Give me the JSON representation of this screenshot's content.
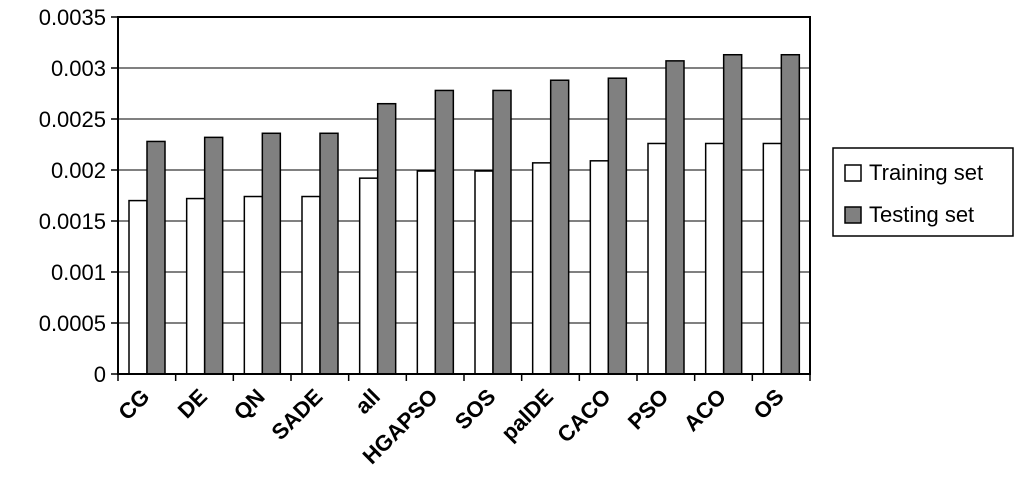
{
  "chart_data": {
    "type": "bar",
    "categories": [
      "CG",
      "DE",
      "QN",
      "SADE",
      "all",
      "HGAPSO",
      "SOS",
      "palDE",
      "CACO",
      "PSO",
      "ACO",
      "OS"
    ],
    "series": [
      {
        "name": "Training set",
        "color": "#ffffff",
        "values": [
          0.0017,
          0.00172,
          0.00174,
          0.00174,
          0.00192,
          0.00199,
          0.00199,
          0.00207,
          0.00209,
          0.00226,
          0.00226,
          0.00226
        ]
      },
      {
        "name": "Testing set",
        "color": "#808080",
        "values": [
          0.00228,
          0.00232,
          0.00236,
          0.00236,
          0.00265,
          0.00278,
          0.00278,
          0.00288,
          0.0029,
          0.00307,
          0.00313,
          0.00313
        ]
      }
    ],
    "y_ticks": [
      "0",
      "0.0005",
      "0.001",
      "0.0015",
      "0.002",
      "0.0025",
      "0.003",
      "0.0035"
    ],
    "ylim": [
      0,
      0.0035
    ],
    "title": "",
    "xlabel": "",
    "ylabel": "",
    "grid": true,
    "legend": "right"
  }
}
